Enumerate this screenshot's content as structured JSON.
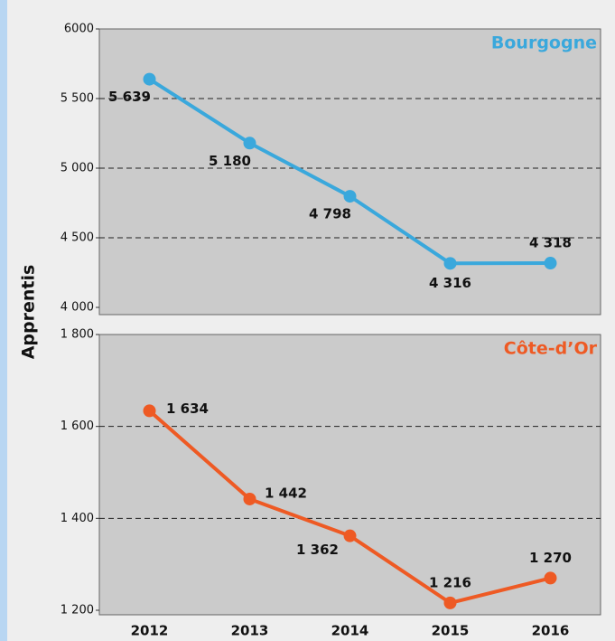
{
  "chart_data": [
    {
      "type": "line",
      "title": "Bourgogne",
      "ylabel": "Apprentis",
      "series": [
        {
          "name": "Bourgogne",
          "color": "#3aa8dc",
          "values": [
            5639,
            5180,
            4798,
            4316,
            4318
          ],
          "value_labels": [
            "5 639",
            "5 180",
            "4 798",
            "4 316",
            "4 318"
          ]
        }
      ],
      "ylim": [
        4000,
        6000
      ],
      "yticks": [
        {
          "value": 4000,
          "label": "4 000"
        },
        {
          "value": 4500,
          "label": "4 500"
        },
        {
          "value": 5000,
          "label": "5 000"
        },
        {
          "value": 5500,
          "label": "5 500"
        },
        6000
      ],
      "grid": true
    },
    {
      "type": "line",
      "title": "Côte-d’Or",
      "categories": [
        "2012",
        "2013",
        "2014",
        "2015",
        "2016"
      ],
      "series": [
        {
          "name": "Côte-d’Or",
          "color": "#ee5a24",
          "values": [
            1634,
            1442,
            1362,
            1216,
            1270
          ],
          "value_labels": [
            "1 634",
            "1 442",
            "1 362",
            "1 216",
            "1 270"
          ]
        }
      ],
      "ylim": [
        1200,
        1800
      ],
      "yticks": [
        {
          "value": 1200,
          "label": "1 200"
        },
        {
          "value": 1400,
          "label": "1 400"
        },
        {
          "value": 1600,
          "label": "1 600"
        },
        {
          "value": 1800,
          "label": "1 800"
        }
      ],
      "grid": true
    }
  ]
}
